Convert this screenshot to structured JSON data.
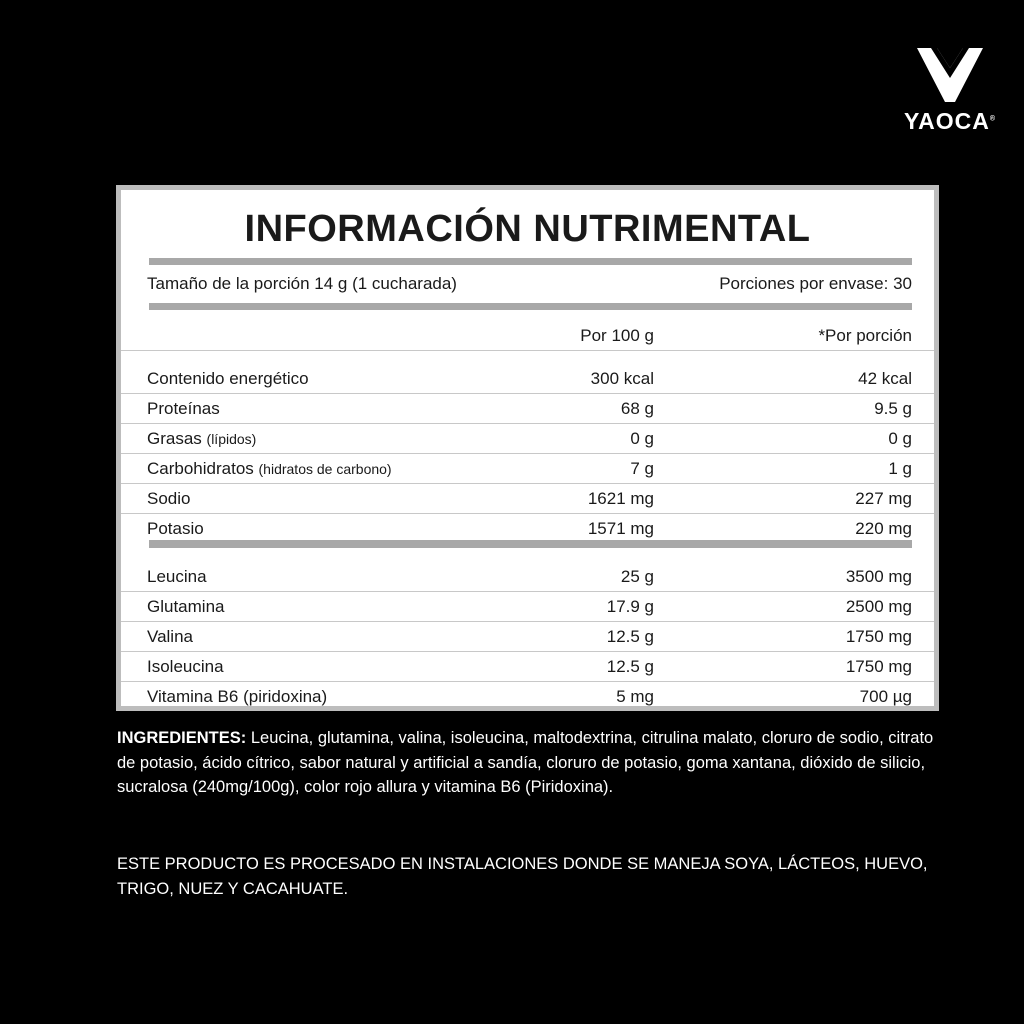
{
  "brand": {
    "name": "YAOCA",
    "mark": "®"
  },
  "label": {
    "title": "INFORMACIÓN NUTRIMENTAL",
    "serving_size": "Tamaño de la porción 14 g (1 cucharada)",
    "servings_per_container": "Porciones por envase: 30",
    "col_per100": "Por 100 g",
    "col_per_serving": "*Por porción",
    "nutrients": [
      {
        "name": "Contenido energético",
        "note": "",
        "per100": "300 kcal",
        "serving": "42 kcal"
      },
      {
        "name": "Proteínas",
        "note": "",
        "per100": "68 g",
        "serving": "9.5 g"
      },
      {
        "name": "Grasas",
        "note": "(lípidos)",
        "per100": "0 g",
        "serving": "0 g"
      },
      {
        "name": "Carbohidratos",
        "note": "(hidratos de carbono)",
        "per100": "7 g",
        "serving": "1 g"
      },
      {
        "name": "Sodio",
        "note": "",
        "per100": "1621 mg",
        "serving": "227 mg"
      },
      {
        "name": "Potasio",
        "note": "",
        "per100": "1571 mg",
        "serving": "220 mg"
      }
    ],
    "aminos": [
      {
        "name": "Leucina",
        "per100": "25 g",
        "serving": "3500 mg"
      },
      {
        "name": "Glutamina",
        "per100": "17.9 g",
        "serving": "2500 mg"
      },
      {
        "name": "Valina",
        "per100": "12.5 g",
        "serving": "1750 mg"
      },
      {
        "name": "Isoleucina",
        "per100": "12.5 g",
        "serving": "1750 mg"
      },
      {
        "name": "Vitamina B6 (piridoxina)",
        "per100": "5 mg",
        "serving": "700 µg"
      }
    ]
  },
  "ingredients": {
    "heading": "INGREDIENTES:",
    "text": " Leucina, glutamina, valina, isoleucina, maltodextrina, citrulina malato, cloruro de sodio, citrato de potasio, ácido cítrico, sabor natural y artificial a sandía, cloruro de potasio, goma xantana, dióxido de silicio,  sucralosa (240mg/100g), color rojo allura y vitamina B6 (Piridoxina)."
  },
  "allergen_notice": "ESTE PRODUCTO ES PROCESADO EN INSTALACIONES DONDE SE MANEJA SOYA, LÁCTEOS, HUEVO, TRIGO, NUEZ Y CACAHUATE."
}
